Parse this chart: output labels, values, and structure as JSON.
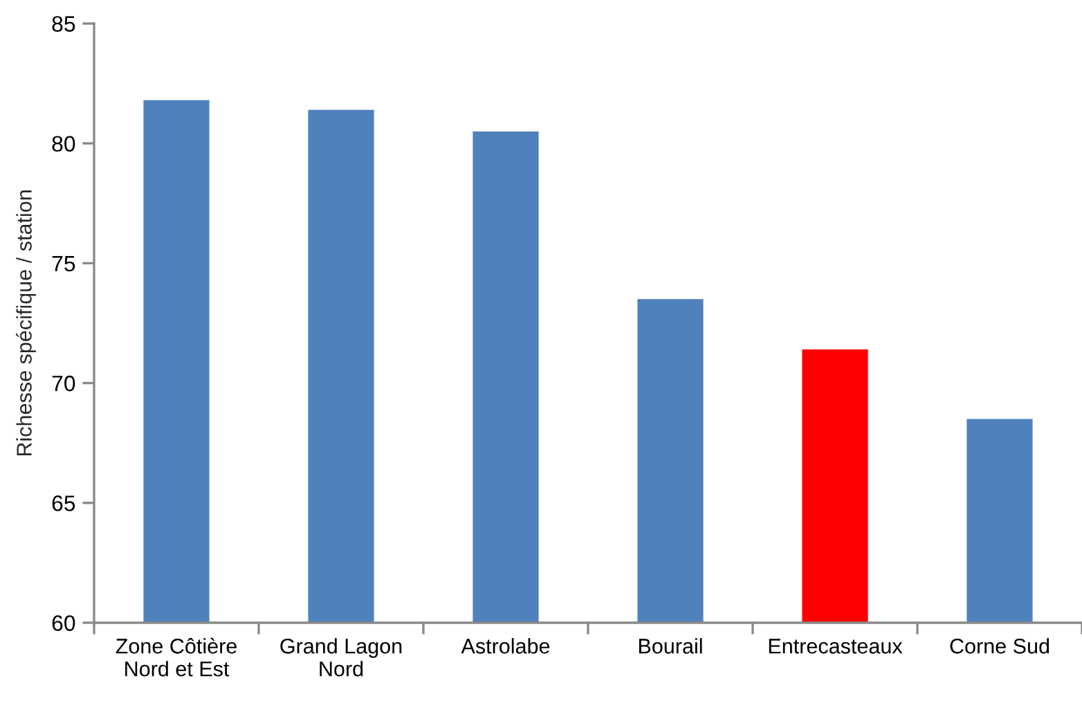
{
  "chart_data": {
    "type": "bar",
    "ylabel": "Richesse spécifique / station",
    "categories": [
      "Zone Côtière\nNord et Est",
      "Grand Lagon\nNord",
      "Astrolabe",
      "Bourail",
      "Entrecasteaux",
      "Corne Sud"
    ],
    "values": [
      81.8,
      81.4,
      80.5,
      73.5,
      71.4,
      68.5
    ],
    "colors": [
      "#4f81bd",
      "#4f81bd",
      "#4f81bd",
      "#4f81bd",
      "#ff0000",
      "#4f81bd"
    ],
    "ylim": [
      60,
      85
    ],
    "yticks": [
      60,
      65,
      70,
      75,
      80,
      85
    ],
    "grid": false,
    "legend": false
  }
}
